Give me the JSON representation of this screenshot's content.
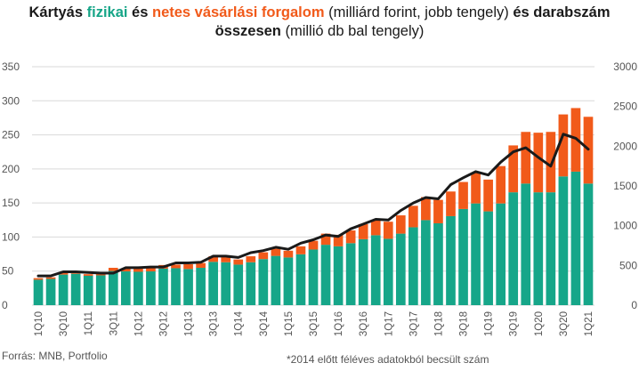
{
  "title": {
    "line1": [
      {
        "text": "Kártyás ",
        "style": "bold"
      },
      {
        "text": "fizikai",
        "style": "green"
      },
      {
        "text": " és ",
        "style": "bold"
      },
      {
        "text": "netes vásárlási forgalom",
        "style": "orange"
      },
      {
        "text": " (milliárd forint, jobb tengely) ",
        "style": "normal"
      },
      {
        "text": "és darabszám",
        "style": "bold"
      }
    ],
    "line2": [
      {
        "text": "összesen",
        "style": "bold"
      },
      {
        "text": " (millió db bal tengely)",
        "style": "normal"
      }
    ]
  },
  "source": "Forrás: MNB, Portfolio",
  "note": "*2014 előtt féléves adatokból becsült szám",
  "colors": {
    "physical": "#16a689",
    "online": "#f15a1a",
    "count": "#1a1a1a",
    "grid": "#d9d9d9",
    "text": "#555555"
  },
  "chart_data": {
    "type": "bar",
    "stacked": true,
    "quarters": [
      "1Q10",
      "2Q10",
      "3Q10",
      "4Q10",
      "1Q11",
      "2Q11",
      "3Q11",
      "4Q11",
      "1Q12",
      "2Q12",
      "3Q12",
      "4Q12",
      "1Q13",
      "2Q13",
      "3Q13",
      "4Q13",
      "1Q14",
      "2Q14",
      "3Q14",
      "4Q14",
      "1Q15",
      "2Q15",
      "3Q15",
      "4Q15",
      "1Q16",
      "2Q16",
      "3Q16",
      "4Q16",
      "1Q17",
      "2Q17",
      "3Q17",
      "4Q17",
      "1Q18",
      "2Q18",
      "3Q18",
      "4Q18",
      "1Q19",
      "2Q19",
      "3Q19",
      "4Q19",
      "1Q20",
      "2Q20",
      "3Q20",
      "4Q20",
      "1Q21"
    ],
    "x_tick_labels": [
      {
        "index": 0,
        "label": "1Q10"
      },
      {
        "index": 2,
        "label": "3Q10"
      },
      {
        "index": 4,
        "label": "1Q11"
      },
      {
        "index": 6,
        "label": "3Q11"
      },
      {
        "index": 8,
        "label": "1Q12"
      },
      {
        "index": 10,
        "label": "3Q12"
      },
      {
        "index": 12,
        "label": "1Q13"
      },
      {
        "index": 14,
        "label": "3Q13"
      },
      {
        "index": 16,
        "label": "1Q14"
      },
      {
        "index": 18,
        "label": "3Q14"
      },
      {
        "index": 20,
        "label": "1Q15"
      },
      {
        "index": 22,
        "label": "3Q15"
      },
      {
        "index": 24,
        "label": "1Q16"
      },
      {
        "index": 26,
        "label": "3Q16"
      },
      {
        "index": 28,
        "label": "1Q17"
      },
      {
        "index": 30,
        "label": "3Q17"
      },
      {
        "index": 32,
        "label": "1Q18"
      },
      {
        "index": 34,
        "label": "3Q18"
      },
      {
        "index": 36,
        "label": "1Q19"
      },
      {
        "index": 38,
        "label": "3Q19"
      },
      {
        "index": 40,
        "label": "1Q20"
      },
      {
        "index": 42,
        "label": "3Q20"
      },
      {
        "index": 44,
        "label": "1Q21"
      }
    ],
    "series": [
      {
        "key": "physical",
        "axis": "right",
        "kind": "bar",
        "values": [
          320,
          330,
          385,
          395,
          370,
          375,
          430,
          425,
          420,
          425,
          460,
          465,
          455,
          470,
          545,
          540,
          510,
          540,
          580,
          620,
          600,
          640,
          700,
          760,
          740,
          780,
          830,
          880,
          835,
          900,
          980,
          1070,
          1030,
          1120,
          1210,
          1280,
          1180,
          1280,
          1420,
          1530,
          1420,
          1420,
          1620,
          1680,
          1530
        ]
      },
      {
        "key": "online",
        "axis": "right",
        "kind": "bar",
        "values": [
          20,
          20,
          20,
          20,
          20,
          20,
          40,
          40,
          45,
          45,
          45,
          45,
          60,
          60,
          70,
          75,
          65,
          75,
          85,
          90,
          85,
          100,
          110,
          140,
          145,
          160,
          190,
          190,
          215,
          230,
          270,
          290,
          295,
          310,
          340,
          390,
          400,
          470,
          590,
          650,
          750,
          760,
          780,
          800,
          840
        ]
      },
      {
        "key": "count",
        "axis": "left",
        "kind": "line",
        "values": [
          43,
          43,
          49,
          49,
          48,
          47,
          47,
          55,
          55,
          56,
          56,
          62,
          62,
          63,
          72,
          72,
          70,
          77,
          80,
          85,
          82,
          91,
          96,
          103,
          101,
          112,
          119,
          126,
          125,
          139,
          150,
          158,
          156,
          177,
          187,
          196,
          191,
          210,
          225,
          231,
          217,
          204,
          251,
          245,
          229
        ]
      }
    ],
    "left_axis": {
      "min": 0,
      "max": 350,
      "ticks": [
        0,
        50,
        100,
        150,
        200,
        250,
        300,
        350
      ]
    },
    "right_axis": {
      "min": 0,
      "max": 3000,
      "ticks": [
        0,
        500,
        1000,
        1500,
        2000,
        2500,
        3000
      ]
    },
    "grid": true,
    "legend": "none"
  }
}
